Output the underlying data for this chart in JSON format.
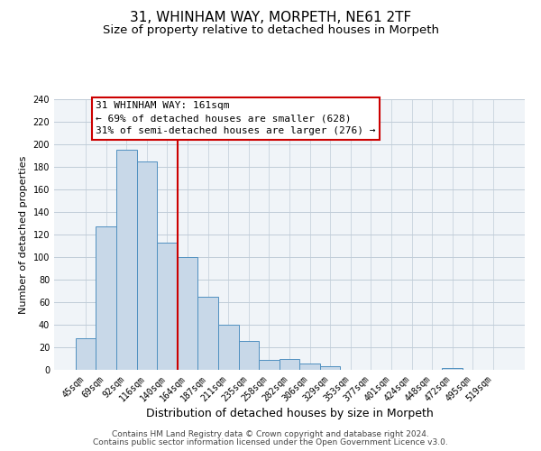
{
  "title": "31, WHINHAM WAY, MORPETH, NE61 2TF",
  "subtitle": "Size of property relative to detached houses in Morpeth",
  "xlabel": "Distribution of detached houses by size in Morpeth",
  "ylabel": "Number of detached properties",
  "bar_labels": [
    "45sqm",
    "69sqm",
    "92sqm",
    "116sqm",
    "140sqm",
    "164sqm",
    "187sqm",
    "211sqm",
    "235sqm",
    "258sqm",
    "282sqm",
    "306sqm",
    "329sqm",
    "353sqm",
    "377sqm",
    "401sqm",
    "424sqm",
    "448sqm",
    "472sqm",
    "495sqm",
    "519sqm"
  ],
  "bar_heights": [
    28,
    127,
    195,
    185,
    113,
    100,
    65,
    40,
    26,
    9,
    10,
    6,
    3,
    0,
    0,
    0,
    0,
    0,
    2,
    0,
    0
  ],
  "bar_color": "#c8d8e8",
  "bar_edge_color": "#5090c0",
  "grid_color": "#c0ccd8",
  "vline_index": 5,
  "vline_color": "#cc0000",
  "annotation_title": "31 WHINHAM WAY: 161sqm",
  "annotation_line1": "← 69% of detached houses are smaller (628)",
  "annotation_line2": "31% of semi-detached houses are larger (276) →",
  "annotation_box_color": "#ffffff",
  "annotation_box_edge": "#cc0000",
  "ylim": [
    0,
    240
  ],
  "yticks": [
    0,
    20,
    40,
    60,
    80,
    100,
    120,
    140,
    160,
    180,
    200,
    220,
    240
  ],
  "footer1": "Contains HM Land Registry data © Crown copyright and database right 2024.",
  "footer2": "Contains public sector information licensed under the Open Government Licence v3.0.",
  "title_fontsize": 11,
  "subtitle_fontsize": 9.5,
  "xlabel_fontsize": 9,
  "ylabel_fontsize": 8,
  "tick_fontsize": 7,
  "annotation_fontsize": 8,
  "footer_fontsize": 6.5,
  "bg_color": "#f0f4f8"
}
